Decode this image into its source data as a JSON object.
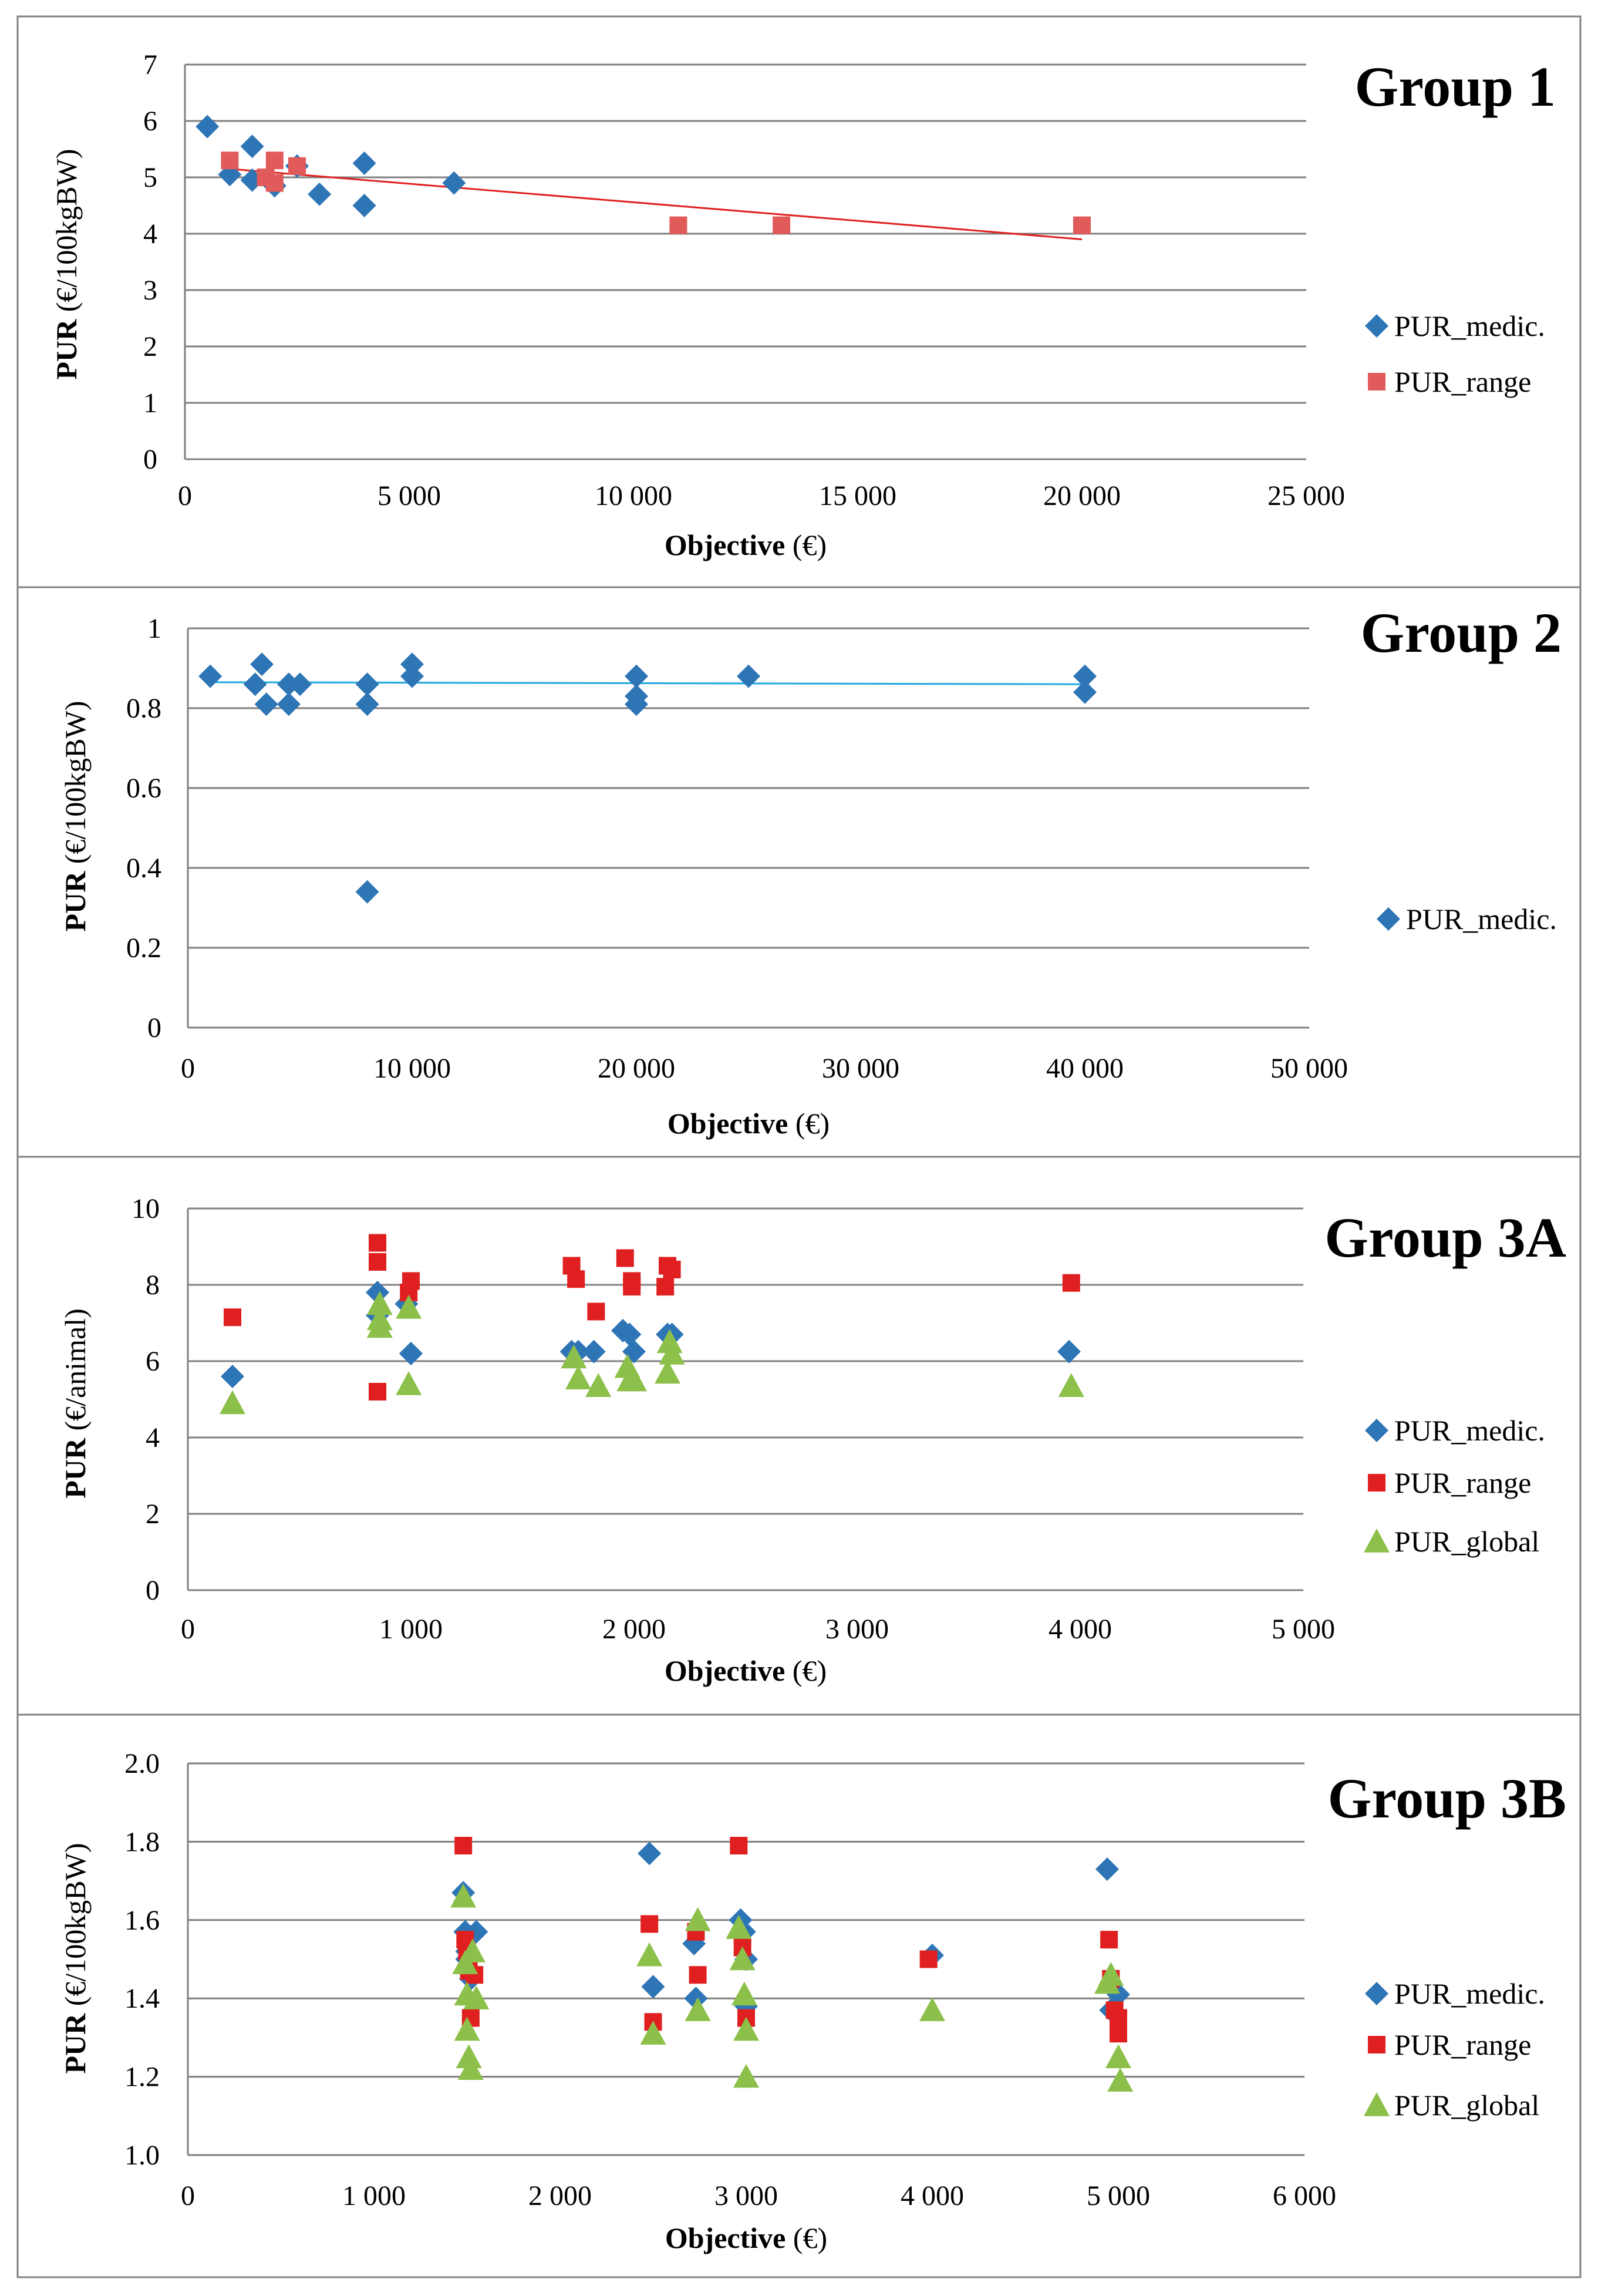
{
  "colors": {
    "medic": "#2E75B6",
    "range": "#E02020",
    "range_g1": "#E25B5B",
    "global": "#8DC04A",
    "trend_g1": "#E02020",
    "trend_g2": "#1EA8E0",
    "grid": "#7F7F7F",
    "axis": "#7F7F7F",
    "panel_border": "#808080"
  },
  "chart_data": [
    {
      "type": "scatter",
      "title": "Group 1",
      "xlabel_bold": "Objective",
      "xlabel_rest": " (€)",
      "ylabel_bold": "PUR",
      "ylabel_rest": " (€/100kgBW)",
      "xlim": [
        0,
        25000
      ],
      "ylim": [
        0,
        7
      ],
      "xticks": [
        0,
        5000,
        10000,
        15000,
        20000,
        25000
      ],
      "xtick_labels": [
        "0",
        "5 000",
        "10 000",
        "15 000",
        "20 000",
        "25 000"
      ],
      "yticks": [
        0,
        1,
        2,
        3,
        4,
        5,
        6,
        7
      ],
      "ytick_labels": [
        "0",
        "1",
        "2",
        "3",
        "4",
        "5",
        "6",
        "7"
      ],
      "grid": true,
      "legend_position": "right",
      "series": [
        {
          "name": "PUR_medic.",
          "marker": "diamond",
          "color_key": "medic",
          "x": [
            500,
            1000,
            1500,
            1500,
            2000,
            2500,
            3000,
            4000,
            4000,
            6000
          ],
          "y": [
            5.9,
            5.05,
            5.55,
            4.95,
            4.85,
            5.2,
            4.7,
            4.5,
            5.25,
            4.9
          ]
        },
        {
          "name": "PUR_range",
          "marker": "square",
          "color_key": "range_g1",
          "x": [
            1000,
            1800,
            2000,
            2000,
            2500,
            11000,
            13300,
            20000
          ],
          "y": [
            5.3,
            5.0,
            4.9,
            5.3,
            5.2,
            4.15,
            4.15,
            4.15
          ]
        }
      ],
      "trendline": {
        "series": "PUR_range",
        "x": [
          1000,
          20000
        ],
        "y": [
          5.15,
          3.9
        ],
        "color_key": "trend_g1"
      }
    },
    {
      "type": "scatter",
      "title": "Group 2",
      "xlabel_bold": "Objective",
      "xlabel_rest": " (€)",
      "ylabel_bold": "PUR",
      "ylabel_rest": " (€/100kgBW)",
      "xlim": [
        0,
        50000
      ],
      "ylim": [
        0,
        1
      ],
      "xticks": [
        0,
        10000,
        20000,
        30000,
        40000,
        50000
      ],
      "xtick_labels": [
        "0",
        "10 000",
        "20 000",
        "30 000",
        "40 000",
        "50 000"
      ],
      "yticks": [
        0,
        0.2,
        0.4,
        0.6,
        0.8,
        1
      ],
      "ytick_labels": [
        "0",
        "0.2",
        "0.4",
        "0.6",
        "0.8",
        "1"
      ],
      "grid": true,
      "legend_position": "right",
      "series": [
        {
          "name": "PUR_medic.",
          "marker": "diamond",
          "color_key": "medic",
          "x": [
            1000,
            3000,
            3300,
            3500,
            4500,
            4500,
            5000,
            8000,
            8000,
            8000,
            10000,
            10000,
            20000,
            20000,
            20000,
            25000,
            40000,
            40000
          ],
          "y": [
            0.88,
            0.86,
            0.91,
            0.81,
            0.86,
            0.81,
            0.86,
            0.86,
            0.81,
            0.34,
            0.91,
            0.88,
            0.88,
            0.83,
            0.81,
            0.88,
            0.88,
            0.84
          ]
        }
      ],
      "trendline": {
        "series": "PUR_medic.",
        "x": [
          1000,
          40000
        ],
        "y": [
          0.865,
          0.86
        ],
        "color_key": "trend_g2"
      }
    },
    {
      "type": "scatter",
      "title": "Group 3A",
      "xlabel_bold": "Objective",
      "xlabel_rest": " (€)",
      "ylabel_bold": "PUR",
      "ylabel_rest": " (€/animal)",
      "xlim": [
        0,
        5000
      ],
      "ylim": [
        0,
        10
      ],
      "xticks": [
        0,
        1000,
        2000,
        3000,
        4000,
        5000
      ],
      "xtick_labels": [
        "0",
        "1 000",
        "2 000",
        "3 000",
        "4 000",
        "5 000"
      ],
      "yticks": [
        0,
        2,
        4,
        6,
        8,
        10
      ],
      "ytick_labels": [
        "0",
        "2",
        "4",
        "6",
        "8",
        "10"
      ],
      "grid": true,
      "legend_position": "right",
      "series": [
        {
          "name": "PUR_medic.",
          "marker": "diamond",
          "color_key": "medic",
          "x": [
            200,
            850,
            850,
            980,
            1000,
            1000,
            1720,
            1750,
            1820,
            1950,
            1980,
            2000,
            2150,
            2170,
            3950
          ],
          "y": [
            5.6,
            7.8,
            7.2,
            7.5,
            6.2,
            6.2,
            6.25,
            6.25,
            6.25,
            6.8,
            6.7,
            6.25,
            6.7,
            6.7,
            6.25
          ]
        },
        {
          "name": "PUR_range",
          "marker": "square",
          "color_key": "range",
          "x": [
            200,
            850,
            850,
            850,
            990,
            1000,
            1720,
            1740,
            1830,
            1960,
            1990,
            1990,
            2140,
            2150,
            2170,
            3960
          ],
          "y": [
            7.15,
            9.1,
            8.6,
            5.2,
            7.8,
            8.1,
            8.5,
            8.15,
            7.3,
            8.7,
            8.1,
            7.95,
            7.95,
            8.5,
            8.4,
            8.05
          ]
        },
        {
          "name": "PUR_global",
          "marker": "triangle",
          "color_key": "global",
          "x": [
            200,
            860,
            860,
            860,
            990,
            990,
            1730,
            1750,
            1840,
            1970,
            1980,
            2000,
            2150,
            2160,
            2170,
            3960
          ],
          "y": [
            4.9,
            7.5,
            7.1,
            6.9,
            7.4,
            5.4,
            6.1,
            5.55,
            5.35,
            5.85,
            5.5,
            5.5,
            5.7,
            6.5,
            6.2,
            5.35
          ]
        }
      ]
    },
    {
      "type": "scatter",
      "title": "Group 3B",
      "xlabel_bold": "Objective",
      "xlabel_rest": " (€)",
      "ylabel_bold": "PUR",
      "ylabel_rest": " (€/100kgBW)",
      "xlim": [
        0,
        6000
      ],
      "ylim": [
        1.0,
        2.0
      ],
      "xticks": [
        0,
        1000,
        2000,
        3000,
        4000,
        5000,
        6000
      ],
      "xtick_labels": [
        "0",
        "1 000",
        "2 000",
        "3 000",
        "4 000",
        "5 000",
        "6 000"
      ],
      "yticks": [
        1.0,
        1.2,
        1.4,
        1.6,
        1.8,
        2.0
      ],
      "ytick_labels": [
        "1.0",
        "1.2",
        "1.4",
        "1.6",
        "1.8",
        "2.0"
      ],
      "grid": true,
      "legend_position": "right",
      "series": [
        {
          "name": "PUR_medic.",
          "marker": "diamond",
          "color_key": "medic",
          "x": [
            1480,
            1490,
            1500,
            1520,
            1550,
            1500,
            2480,
            2500,
            2720,
            2730,
            2970,
            2990,
            3000,
            3000,
            4000,
            4940,
            4960,
            5000
          ],
          "y": [
            1.67,
            1.57,
            1.5,
            1.45,
            1.57,
            1.52,
            1.77,
            1.43,
            1.54,
            1.4,
            1.6,
            1.57,
            1.5,
            1.38,
            1.51,
            1.73,
            1.37,
            1.41
          ]
        },
        {
          "name": "PUR_range",
          "marker": "square",
          "color_key": "range",
          "x": [
            1480,
            1490,
            1500,
            1510,
            1520,
            1540,
            2480,
            2500,
            2730,
            2740,
            2960,
            2980,
            3000,
            3980,
            4950,
            4960,
            4980,
            5000,
            5000
          ],
          "y": [
            1.79,
            1.55,
            1.52,
            1.47,
            1.35,
            1.46,
            1.59,
            1.34,
            1.57,
            1.46,
            1.79,
            1.53,
            1.35,
            1.5,
            1.55,
            1.45,
            1.37,
            1.35,
            1.31
          ]
        },
        {
          "name": "PUR_global",
          "marker": "triangle",
          "color_key": "global",
          "x": [
            1480,
            1490,
            1500,
            1500,
            1510,
            1520,
            1530,
            1550,
            2480,
            2500,
            2740,
            2740,
            2960,
            2980,
            2990,
            3000,
            3000,
            4000,
            4940,
            4960,
            5000,
            5010
          ],
          "y": [
            1.66,
            1.49,
            1.41,
            1.32,
            1.25,
            1.22,
            1.52,
            1.4,
            1.51,
            1.31,
            1.6,
            1.37,
            1.58,
            1.5,
            1.41,
            1.2,
            1.32,
            1.37,
            1.44,
            1.46,
            1.25,
            1.19
          ]
        }
      ]
    }
  ]
}
